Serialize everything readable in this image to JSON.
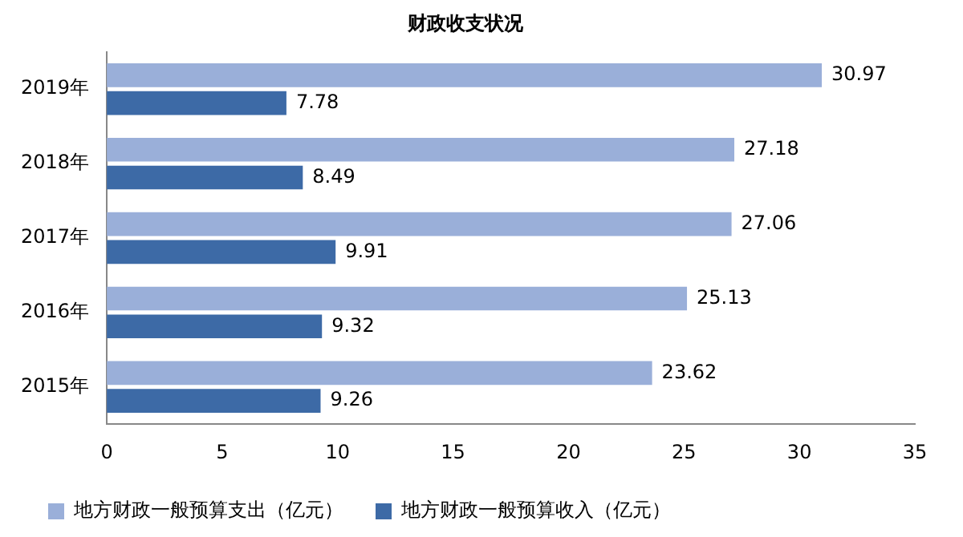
{
  "chart_data": {
    "type": "bar",
    "orientation": "horizontal",
    "title": "财政收支状况",
    "categories": [
      "2019年",
      "2018年",
      "2017年",
      "2016年",
      "2015年"
    ],
    "series": [
      {
        "name": "地方财政一般预算支出（亿元）",
        "color": "#9aafd9",
        "values": [
          30.97,
          27.18,
          27.06,
          25.13,
          23.62
        ]
      },
      {
        "name": "地方财政一般预算收入（亿元）",
        "color": "#3d6aa6",
        "values": [
          7.78,
          8.49,
          9.91,
          9.32,
          9.26
        ]
      }
    ],
    "xlim": [
      0,
      35
    ],
    "xticks": [
      0,
      5,
      10,
      15,
      20,
      25,
      30,
      35
    ],
    "data_labels": true,
    "grid": false,
    "legend": "bottom"
  }
}
